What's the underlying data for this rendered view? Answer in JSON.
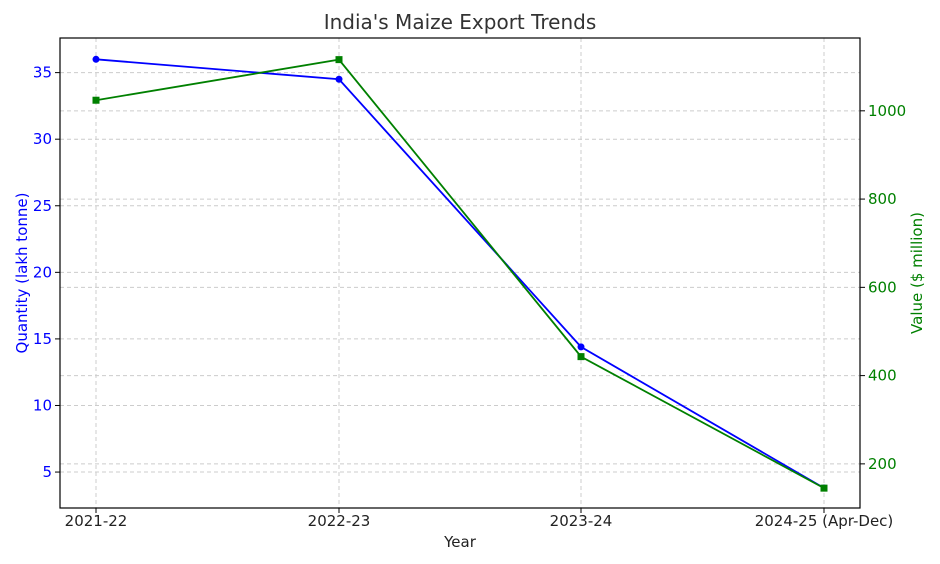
{
  "chart_data": {
    "type": "line",
    "title": "India's Maize Export Trends",
    "xlabel": "Year",
    "categories": [
      "2021-22",
      "2022-23",
      "2023-24",
      "2024-25 (Apr-Dec)"
    ],
    "grid": true,
    "y_left": {
      "label": "Quantity (lakh tonne)",
      "color": "#0000ff",
      "range": [
        2.3,
        37.6
      ],
      "ticks": [
        5,
        10,
        15,
        20,
        25,
        30,
        35
      ]
    },
    "y_right": {
      "label": "Value ($ million)",
      "color": "#008000",
      "range": [
        100,
        1165
      ],
      "ticks": [
        200,
        400,
        600,
        800,
        1000
      ]
    },
    "series": [
      {
        "axis": "left",
        "color": "#0000ff",
        "marker": "circle",
        "values": [
          36.0,
          34.5,
          14.4,
          3.8
        ]
      },
      {
        "axis": "right",
        "color": "#008000",
        "marker": "square",
        "values": [
          1024,
          1116,
          443,
          145
        ]
      }
    ]
  }
}
